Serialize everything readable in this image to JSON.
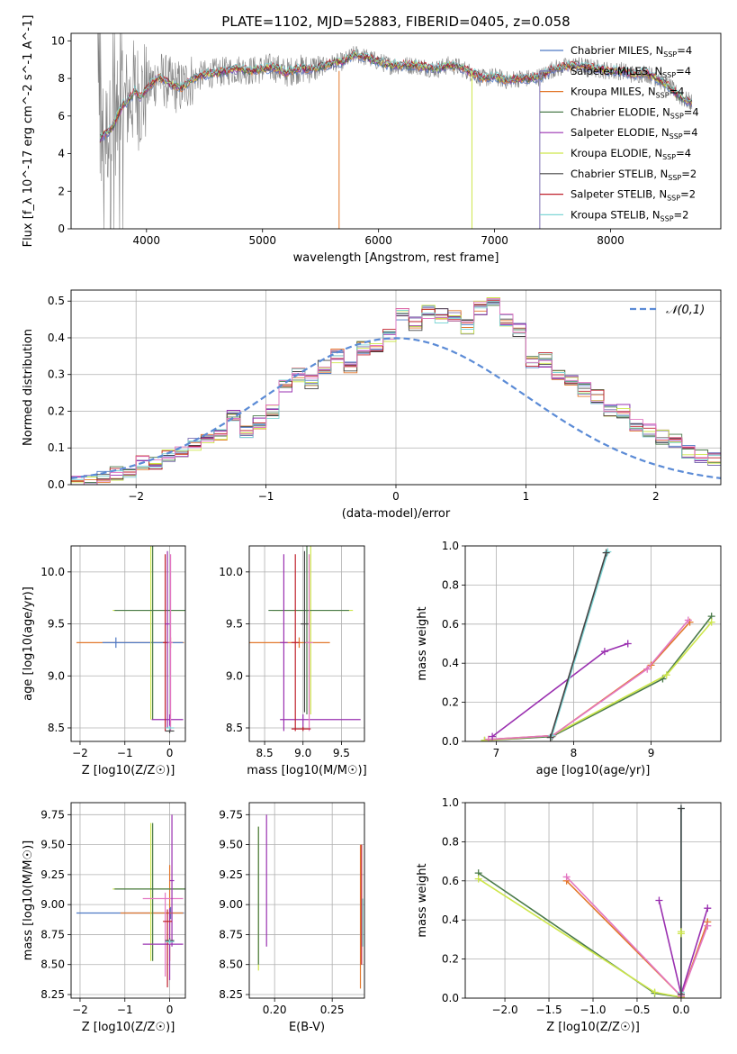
{
  "figure": {
    "title": "PLATE=1102, MJD=52883, FIBERID=0405, z=0.058"
  },
  "chart_data": [
    {
      "id": "spectrum",
      "type": "line",
      "title": "PLATE=1102, MJD=52883, FIBERID=0405, z=0.058",
      "xlabel": "wavelength [Angstrom, rest frame]",
      "ylabel": "Flux [f_λ 10^-17 erg cm^-2 s^-1 A^-1]",
      "xlim": [
        3350,
        8950
      ],
      "ylim": [
        0,
        10.4
      ],
      "xticks": [
        4000,
        5000,
        6000,
        7000,
        8000
      ],
      "yticks": [
        0,
        2,
        4,
        6,
        8,
        10
      ],
      "grid": false,
      "legend_position": "right",
      "continuum": {
        "x": [
          3600,
          3650,
          3700,
          3750,
          3800,
          3850,
          3900,
          3950,
          4000,
          4100,
          4200,
          4300,
          4400,
          4500,
          4600,
          4700,
          4800,
          4900,
          5000,
          5100,
          5200,
          5300,
          5400,
          5500,
          5600,
          5700,
          5800,
          5900,
          6000,
          6100,
          6200,
          6300,
          6400,
          6500,
          6600,
          6700,
          6800,
          6900,
          7000,
          7100,
          7200,
          7300,
          7400,
          7500,
          7600,
          7700,
          7800,
          7900,
          8000,
          8100,
          8200,
          8300,
          8400,
          8500,
          8600,
          8700
        ],
        "y": [
          4.8,
          5.1,
          5.3,
          6.0,
          6.6,
          6.9,
          7.3,
          7.0,
          7.4,
          8.1,
          7.7,
          7.5,
          8.0,
          8.2,
          8.3,
          8.4,
          8.5,
          8.4,
          8.5,
          8.6,
          8.3,
          8.5,
          8.5,
          8.6,
          8.8,
          8.9,
          9.3,
          9.1,
          8.9,
          8.7,
          8.7,
          8.7,
          8.6,
          8.5,
          8.7,
          8.6,
          8.3,
          8.0,
          8.1,
          7.9,
          8.0,
          8.0,
          8.1,
          8.5,
          8.6,
          8.7,
          8.6,
          8.5,
          8.4,
          8.4,
          8.2,
          8.3,
          8.0,
          7.6,
          7.0,
          6.7
        ]
      },
      "data_range": [
        3580,
        8700
      ],
      "series": [
        {
          "name": "Chabrier MILES, N_SSP=4",
          "color": "#4e79c4"
        },
        {
          "name": "Salpeter MILES, N_SSP=4",
          "color": "#7b6fb0"
        },
        {
          "name": "Kroupa MILES, N_SSP=4",
          "color": "#e2782c"
        },
        {
          "name": "Chabrier ELODIE, N_SSP=4",
          "color": "#4a7a4a"
        },
        {
          "name": "Salpeter ELODIE, N_SSP=4",
          "color": "#9a30b0"
        },
        {
          "name": "Kroupa ELODIE, N_SSP=4",
          "color": "#cde64a"
        },
        {
          "name": "Chabrier STELIB, N_SSP=2",
          "color": "#444444"
        },
        {
          "name": "Salpeter STELIB, N_SSP=2",
          "color": "#c0202c"
        },
        {
          "name": "Kroupa STELIB, N_SSP=2",
          "color": "#7fd6d6"
        }
      ],
      "data_color": "#808080"
    },
    {
      "id": "residuals",
      "type": "line",
      "xlabel": "(data-model)/error",
      "ylabel": "Normed distribution",
      "xlim": [
        -2.5,
        2.5
      ],
      "ylim": [
        0,
        0.53
      ],
      "xticks": [
        -2,
        -1,
        0,
        1,
        2
      ],
      "yticks": [
        0.0,
        0.1,
        0.2,
        0.3,
        0.4,
        0.5
      ],
      "grid": true,
      "legend_position": "top-right",
      "gaussian": {
        "name": "𝒩(0,1)",
        "mean": 0,
        "sigma": 1,
        "color": "#5b8bd6"
      },
      "bin_width": 0.1,
      "bin_start": -2.5,
      "hist_base": [
        0.01,
        0.015,
        0.02,
        0.03,
        0.04,
        0.06,
        0.06,
        0.08,
        0.09,
        0.11,
        0.12,
        0.13,
        0.19,
        0.14,
        0.17,
        0.2,
        0.27,
        0.3,
        0.28,
        0.32,
        0.35,
        0.32,
        0.37,
        0.38,
        0.41,
        0.46,
        0.44,
        0.47,
        0.46,
        0.46,
        0.43,
        0.48,
        0.49,
        0.45,
        0.42,
        0.33,
        0.34,
        0.3,
        0.29,
        0.26,
        0.24,
        0.2,
        0.2,
        0.16,
        0.15,
        0.13,
        0.12,
        0.09,
        0.08,
        0.07,
        0.05,
        0.04,
        0.03,
        0.04,
        0.03,
        0.02
      ]
    },
    {
      "id": "age-vs-Z",
      "type": "scatter",
      "xlabel": "Z [log10(Z/Z☉)]",
      "ylabel": "age [log10(age/yr)]",
      "xlim": [
        -2.2,
        0.35
      ],
      "ylim": [
        8.37,
        10.25
      ],
      "xticks": [
        -2,
        -1,
        0
      ],
      "yticks": [
        8.5,
        9.0,
        9.5,
        10.0
      ],
      "grid": true,
      "points": [
        {
          "x": 0.02,
          "y": 9.32,
          "xerr": [
            2.1,
            0.3
          ],
          "yerr": [
            0.05,
            0.05
          ],
          "color": "#e2782c"
        },
        {
          "x": -1.2,
          "y": 9.32,
          "xerr": [
            0.3,
            1.5
          ],
          "yerr": [
            0.05,
            0.05
          ],
          "color": "#4e79c4"
        },
        {
          "x": -0.42,
          "y": 9.63,
          "xerr": [
            0.85,
            0.75
          ],
          "yerr": [
            1.05,
            1.2
          ],
          "color": "#cde64a"
        },
        {
          "x": -0.38,
          "y": 9.63,
          "xerr": [
            0.85,
            0.75
          ],
          "yerr": [
            1.05,
            1.2
          ],
          "color": "#4a7a4a"
        },
        {
          "x": 0.0,
          "y": 8.58,
          "xerr": [
            0.4,
            0.3
          ],
          "yerr": [
            0.1,
            0.05
          ],
          "color": "#9a30b0"
        },
        {
          "x": 0.02,
          "y": 9.32,
          "xerr": [
            0.05,
            0.05
          ],
          "yerr": [
            0.85,
            0.85
          ],
          "color": "#e377c2"
        },
        {
          "x": -0.1,
          "y": 9.32,
          "xerr": [
            0.05,
            0.05
          ],
          "yerr": [
            0.85,
            0.85
          ],
          "color": "#c0202c"
        },
        {
          "x": -0.05,
          "y": 9.5,
          "xerr": [
            0.05,
            0.05
          ],
          "yerr": [
            1.0,
            0.7
          ],
          "color": "#9a30b0"
        },
        {
          "x": 0.0,
          "y": 8.47,
          "xerr": [
            0.1,
            0.1
          ],
          "yerr": [
            0.02,
            0.02
          ],
          "color": "#444444"
        },
        {
          "x": 0.0,
          "y": 8.5,
          "xerr": [
            0.1,
            0.1
          ],
          "yerr": [
            0.02,
            0.02
          ],
          "color": "#7fd6d6"
        }
      ]
    },
    {
      "id": "age-vs-mass",
      "type": "scatter",
      "xlabel": "mass [log10(M/M☉)]",
      "ylabel": "",
      "xlim": [
        8.3,
        9.8
      ],
      "ylim": [
        8.37,
        10.25
      ],
      "xticks": [
        8.5,
        9.0,
        9.5
      ],
      "yticks": [
        8.5,
        9.0,
        9.5,
        10.0
      ],
      "grid": true,
      "points": [
        {
          "x": 8.95,
          "y": 9.32,
          "xerr": [
            0.65,
            0.4
          ],
          "yerr": [
            0.05,
            0.05
          ],
          "color": "#e2782c"
        },
        {
          "x": 9.1,
          "y": 9.63,
          "xerr": [
            0.5,
            0.55
          ],
          "yerr": [
            1.0,
            1.2
          ],
          "color": "#cde64a"
        },
        {
          "x": 9.05,
          "y": 9.63,
          "xerr": [
            0.5,
            0.55
          ],
          "yerr": [
            1.0,
            1.2
          ],
          "color": "#4a7a4a"
        },
        {
          "x": 9.0,
          "y": 8.58,
          "xerr": [
            0.3,
            0.75
          ],
          "yerr": [
            0.1,
            0.05
          ],
          "color": "#9a30b0"
        },
        {
          "x": 8.75,
          "y": 9.32,
          "xerr": [
            0.05,
            0.05
          ],
          "yerr": [
            0.85,
            0.85
          ],
          "color": "#9a30b0"
        },
        {
          "x": 8.9,
          "y": 9.32,
          "xerr": [
            0.05,
            0.05
          ],
          "yerr": [
            0.85,
            0.85
          ],
          "color": "#c0202c"
        },
        {
          "x": 9.08,
          "y": 9.32,
          "xerr": [
            0.05,
            0.05
          ],
          "yerr": [
            0.85,
            0.85
          ],
          "color": "#e377c2"
        },
        {
          "x": 9.02,
          "y": 9.5,
          "xerr": [
            0.05,
            0.05
          ],
          "yerr": [
            0.85,
            0.7
          ],
          "color": "#444444"
        },
        {
          "x": 9.0,
          "y": 8.49,
          "xerr": [
            0.15,
            0.1
          ],
          "yerr": [
            0.02,
            0.02
          ],
          "color": "#c0202c"
        }
      ]
    },
    {
      "id": "weight-vs-age",
      "type": "line",
      "xlabel": "age [log10(age/yr)]",
      "ylabel": "mass weight",
      "xlim": [
        6.6,
        9.9
      ],
      "ylim": [
        0,
        1.0
      ],
      "xticks": [
        7,
        8,
        9
      ],
      "yticks": [
        0.0,
        0.2,
        0.4,
        0.6,
        0.8,
        1.0
      ],
      "grid": true,
      "series": [
        {
          "x": [
            6.85,
            7.72,
            9.15,
            9.78
          ],
          "y": [
            0.005,
            0.025,
            0.32,
            0.64
          ],
          "color": "#4a7a4a"
        },
        {
          "x": [
            6.85,
            7.72,
            9.2,
            9.78
          ],
          "y": [
            0.005,
            0.03,
            0.34,
            0.61
          ],
          "color": "#cde64a"
        },
        {
          "x": [
            6.9,
            7.73,
            9.0,
            9.5
          ],
          "y": [
            0.01,
            0.03,
            0.39,
            0.61
          ],
          "color": "#e2782c"
        },
        {
          "x": [
            6.9,
            7.73,
            8.95,
            9.48
          ],
          "y": [
            0.01,
            0.03,
            0.37,
            0.62
          ],
          "color": "#e377c2"
        },
        {
          "x": [
            6.95,
            8.4,
            8.7
          ],
          "y": [
            0.025,
            0.46,
            0.5
          ],
          "color": "#9a30b0"
        },
        {
          "x": [
            7.72,
            8.44
          ],
          "y": [
            0.03,
            0.97
          ],
          "color": "#7fd6d6"
        },
        {
          "x": [
            7.7,
            8.42
          ],
          "y": [
            0.02,
            0.965
          ],
          "color": "#444444"
        }
      ]
    },
    {
      "id": "mass-vs-Z",
      "type": "scatter",
      "xlabel": "Z [log10(Z/Z☉)]",
      "ylabel": "mass [log10(M/M☉)]",
      "xlim": [
        -2.2,
        0.35
      ],
      "ylim": [
        8.22,
        9.85
      ],
      "xticks": [
        -2,
        -1,
        0
      ],
      "yticks": [
        8.25,
        8.5,
        8.75,
        9.0,
        9.25,
        9.5,
        9.75
      ],
      "grid": true,
      "points": [
        {
          "x": 0.02,
          "y": 8.93,
          "xerr": [
            2.1,
            0.3
          ],
          "yerr": [
            0.05,
            0.05
          ],
          "color": "#4e79c4"
        },
        {
          "x": 0.0,
          "y": 8.93,
          "xerr": [
            1.1,
            0.3
          ],
          "yerr": [
            0.4,
            0.4
          ],
          "color": "#e2782c"
        },
        {
          "x": -0.42,
          "y": 9.13,
          "xerr": [
            0.85,
            0.75
          ],
          "yerr": [
            0.6,
            0.55
          ],
          "color": "#cde64a"
        },
        {
          "x": -0.38,
          "y": 9.13,
          "xerr": [
            0.85,
            0.75
          ],
          "yerr": [
            0.6,
            0.55
          ],
          "color": "#4a7a4a"
        },
        {
          "x": -0.1,
          "y": 9.05,
          "xerr": [
            0.5,
            0.4
          ],
          "yerr": [
            0.65,
            0.05
          ],
          "color": "#e377c2"
        },
        {
          "x": 0.0,
          "y": 8.67,
          "xerr": [
            0.6,
            0.3
          ],
          "yerr": [
            0.3,
            0.3
          ],
          "color": "#9a30b0"
        },
        {
          "x": 0.05,
          "y": 9.2,
          "xerr": [
            0.05,
            0.05
          ],
          "yerr": [
            0.55,
            0.55
          ],
          "color": "#9a30b0"
        },
        {
          "x": -0.05,
          "y": 8.86,
          "xerr": [
            0.1,
            0.1
          ],
          "yerr": [
            0.55,
            0.1
          ],
          "color": "#c0202c"
        },
        {
          "x": 0.0,
          "y": 8.7,
          "xerr": [
            0.1,
            0.1
          ],
          "yerr": [
            0.02,
            0.02
          ],
          "color": "#444444"
        },
        {
          "x": 0.0,
          "y": 8.69,
          "xerr": [
            0.1,
            0.1
          ],
          "yerr": [
            0.02,
            0.02
          ],
          "color": "#7fd6d6"
        }
      ]
    },
    {
      "id": "mass-vs-EBV",
      "type": "scatter",
      "xlabel": "E(B-V)",
      "ylabel": "",
      "xlim": [
        0.178,
        0.278
      ],
      "ylim": [
        8.22,
        9.85
      ],
      "xticks": [
        0.2,
        0.25
      ],
      "yticks": [
        8.25,
        8.5,
        8.75,
        9.0,
        9.25,
        9.5,
        9.75
      ],
      "grid": true,
      "points": [
        {
          "x": 0.186,
          "y": 9.05,
          "xerr": [
            0,
            0
          ],
          "yerr": [
            0.6,
            0.6
          ],
          "color": "#cde64a"
        },
        {
          "x": 0.186,
          "y": 9.1,
          "xerr": [
            0,
            0
          ],
          "yerr": [
            0.6,
            0.55
          ],
          "color": "#4a7a4a"
        },
        {
          "x": 0.193,
          "y": 9.2,
          "xerr": [
            0,
            0
          ],
          "yerr": [
            0.55,
            0.55
          ],
          "color": "#9a30b0"
        },
        {
          "x": 0.2745,
          "y": 8.9,
          "xerr": [
            0,
            0
          ],
          "yerr": [
            0.6,
            0.6
          ],
          "color": "#e2782c"
        },
        {
          "x": 0.2755,
          "y": 9.0,
          "xerr": [
            0,
            0
          ],
          "yerr": [
            0.5,
            0.5
          ],
          "color": "#c0202c"
        },
        {
          "x": 0.2765,
          "y": 8.85,
          "xerr": [
            0,
            0
          ],
          "yerr": [
            0.2,
            0.2
          ],
          "color": "#7fd6d6"
        }
      ]
    },
    {
      "id": "weight-vs-Z",
      "type": "line",
      "xlabel": "Z [log10(Z/Z☉)]",
      "ylabel": "mass weight",
      "xlim": [
        -2.45,
        0.45
      ],
      "ylim": [
        0,
        1.0
      ],
      "xticks": [
        -2.0,
        -1.5,
        -1.0,
        -0.5,
        0.0
      ],
      "yticks": [
        0.0,
        0.2,
        0.4,
        0.6,
        0.8,
        1.0
      ],
      "grid": true,
      "series": [
        {
          "x": [
            -2.3,
            -0.3,
            0.0
          ],
          "y": [
            0.64,
            0.025,
            0.005
          ],
          "color": "#4a7a4a"
        },
        {
          "x": [
            -2.3,
            -0.3,
            0.0
          ],
          "y": [
            0.61,
            0.03,
            0.005
          ],
          "color": "#cde64a"
        },
        {
          "x": [
            -1.3,
            0.0,
            0.3
          ],
          "y": [
            0.6,
            0.01,
            0.39
          ],
          "color": "#e2782c"
        },
        {
          "x": [
            -1.3,
            0.0,
            0.3
          ],
          "y": [
            0.62,
            0.01,
            0.37
          ],
          "color": "#e377c2"
        },
        {
          "x": [
            -0.25,
            0.0,
            0.3
          ],
          "y": [
            0.5,
            0.02,
            0.46
          ],
          "color": "#9a30b0"
        },
        {
          "x": [
            0.0,
            0.0
          ],
          "y": [
            0.97,
            0.03
          ],
          "color": "#7fd6d6"
        },
        {
          "x": [
            0.0,
            0.0
          ],
          "y": [
            0.97,
            0.02
          ],
          "color": "#444444"
        },
        {
          "x": [
            0.0,
            0.0
          ],
          "y": [
            0.33,
            0.34
          ],
          "color": "#cde64a"
        }
      ]
    }
  ]
}
